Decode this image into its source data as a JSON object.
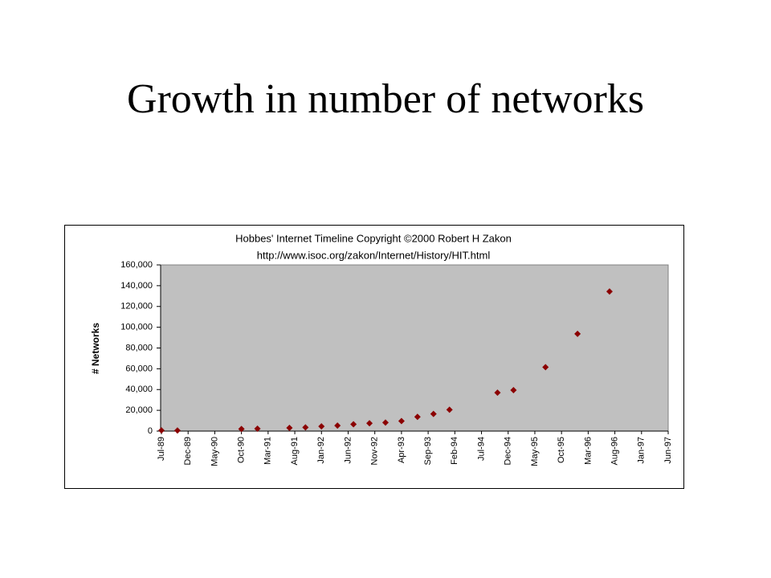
{
  "title": "Growth in number of networks",
  "chart_data": {
    "type": "scatter",
    "title": "Hobbes' Internet Timeline Copyright ©2000 Robert H Zakon",
    "subtitle": "http://www.isoc.org/zakon/Internet/History/HIT.html",
    "y_label": "# Networks",
    "x": [
      "Jul-89",
      "Oct-89",
      "Oct-90",
      "Jan-91",
      "Jul-91",
      "Oct-91",
      "Jan-92",
      "Apr-92",
      "Jul-92",
      "Oct-92",
      "Jan-93",
      "Apr-93",
      "Jul-93",
      "Oct-93",
      "Jan-94",
      "Oct-94",
      "Jan-95",
      "Jul-95",
      "Jan-96",
      "Jul-96"
    ],
    "values": [
      650,
      547,
      2063,
      2338,
      3086,
      3556,
      4526,
      5291,
      6569,
      7505,
      8258,
      9621,
      13767,
      16533,
      20539,
      37022,
      39410,
      61538,
      93671,
      134365
    ],
    "color": "#8b0000",
    "xlim": [
      "Jul-89",
      "Jun-97"
    ],
    "xticks": [
      "Jul-89",
      "Dec-89",
      "May-90",
      "Oct-90",
      "Mar-91",
      "Aug-91",
      "Jan-92",
      "Jun-92",
      "Nov-92",
      "Apr-93",
      "Sep-93",
      "Feb-94",
      "Jul-94",
      "Dec-94",
      "May-95",
      "Oct-95",
      "Mar-96",
      "Aug-96",
      "Jan-97",
      "Jun-97"
    ],
    "ylim": [
      0,
      160000
    ],
    "yticks": [
      0,
      {
        "value": 20000,
        "label": "20,000"
      },
      {
        "value": 40000,
        "label": "40,000"
      },
      {
        "value": 60000,
        "label": "60,000"
      },
      {
        "value": 80000,
        "label": "80,000"
      },
      {
        "value": 100000,
        "label": "100,000"
      },
      {
        "value": 120000,
        "label": "120,000"
      },
      {
        "value": 140000,
        "label": "140,000"
      },
      {
        "value": 160000,
        "label": "160,000"
      }
    ],
    "plot_background": "#c0c0c0"
  }
}
